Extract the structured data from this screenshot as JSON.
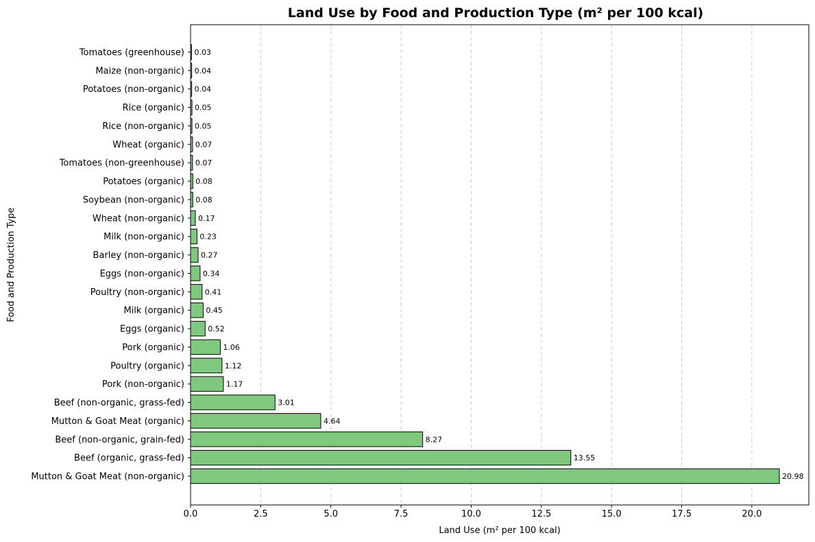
{
  "chart_data": {
    "type": "bar",
    "orientation": "horizontal",
    "title": "Land Use by Food and Production Type (m² per 100 kcal)",
    "xlabel": "Land Use (m² per 100 kcal)",
    "ylabel": "Food and Production Type",
    "xlim": [
      0,
      22.03
    ],
    "x_ticks": [
      "0.0",
      "2.5",
      "5.0",
      "7.5",
      "10.0",
      "12.5",
      "15.0",
      "17.5",
      "20.0"
    ],
    "grid": "x-dashed",
    "bar_color": "#7fc97f",
    "categories": [
      "Mutton & Goat Meat (non-organic)",
      "Beef (organic, grass-fed)",
      "Beef (non-organic, grain-fed)",
      "Mutton & Goat Meat (organic)",
      "Beef (non-organic, grass-fed)",
      "Pork (non-organic)",
      "Poultry (organic)",
      "Pork (organic)",
      "Eggs (organic)",
      "Milk (organic)",
      "Poultry (non-organic)",
      "Eggs (non-organic)",
      "Barley (non-organic)",
      "Milk (non-organic)",
      "Wheat (non-organic)",
      "Soybean (non-organic)",
      "Potatoes (organic)",
      "Tomatoes (non-greenhouse)",
      "Wheat (organic)",
      "Rice (non-organic)",
      "Rice (organic)",
      "Potatoes (non-organic)",
      "Maize (non-organic)",
      "Tomatoes (greenhouse)"
    ],
    "values": [
      20.98,
      13.55,
      8.27,
      4.64,
      3.01,
      1.17,
      1.12,
      1.06,
      0.52,
      0.45,
      0.41,
      0.34,
      0.27,
      0.23,
      0.17,
      0.08,
      0.08,
      0.07,
      0.07,
      0.05,
      0.05,
      0.04,
      0.04,
      0.03
    ],
    "value_labels": [
      "20.98",
      "13.55",
      "8.27",
      "4.64",
      "3.01",
      "1.17",
      "1.12",
      "1.06",
      "0.52",
      "0.45",
      "0.41",
      "0.34",
      "0.27",
      "0.23",
      "0.17",
      "0.08",
      "0.08",
      "0.07",
      "0.07",
      "0.05",
      "0.05",
      "0.04",
      "0.04",
      "0.03"
    ]
  }
}
